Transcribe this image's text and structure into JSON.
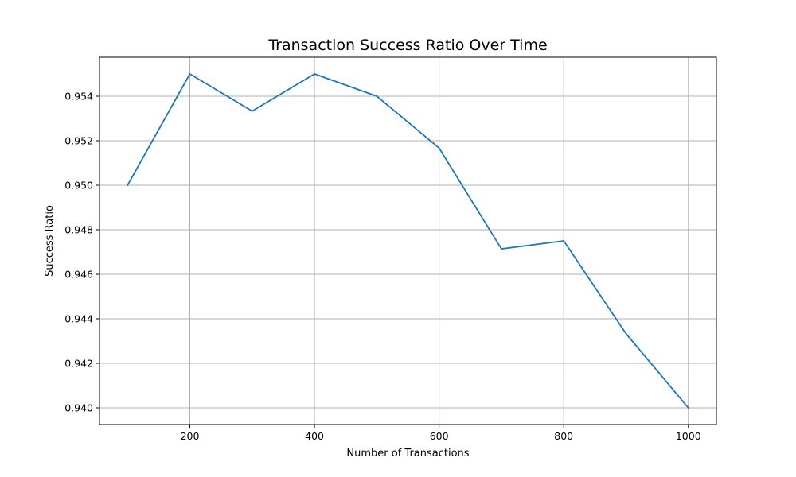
{
  "chart_data": {
    "type": "line",
    "title": "Transaction Success Ratio Over Time",
    "xlabel": "Number of Transactions",
    "ylabel": "Success Ratio",
    "x": [
      100,
      200,
      300,
      400,
      500,
      600,
      700,
      800,
      900,
      1000
    ],
    "series": [
      {
        "values": [
          0.95,
          0.955,
          0.95333,
          0.955,
          0.954,
          0.95167,
          0.94714,
          0.9475,
          0.94333,
          0.94
        ]
      }
    ],
    "xlim": [
      55,
      1045
    ],
    "ylim": [
      0.93925,
      0.95575
    ],
    "xticks": [
      200,
      400,
      600,
      800,
      1000
    ],
    "xtick_labels": [
      "200",
      "400",
      "600",
      "800",
      "1000"
    ],
    "yticks": [
      0.94,
      0.942,
      0.944,
      0.946,
      0.948,
      0.95,
      0.952,
      0.954
    ],
    "ytick_labels": [
      "0.940",
      "0.942",
      "0.944",
      "0.946",
      "0.948",
      "0.950",
      "0.952",
      "0.954"
    ],
    "grid": true,
    "legend": "none",
    "colors": {
      "line": "#1f77b4",
      "grid": "#b0b0b0",
      "axes": "#000000"
    }
  }
}
